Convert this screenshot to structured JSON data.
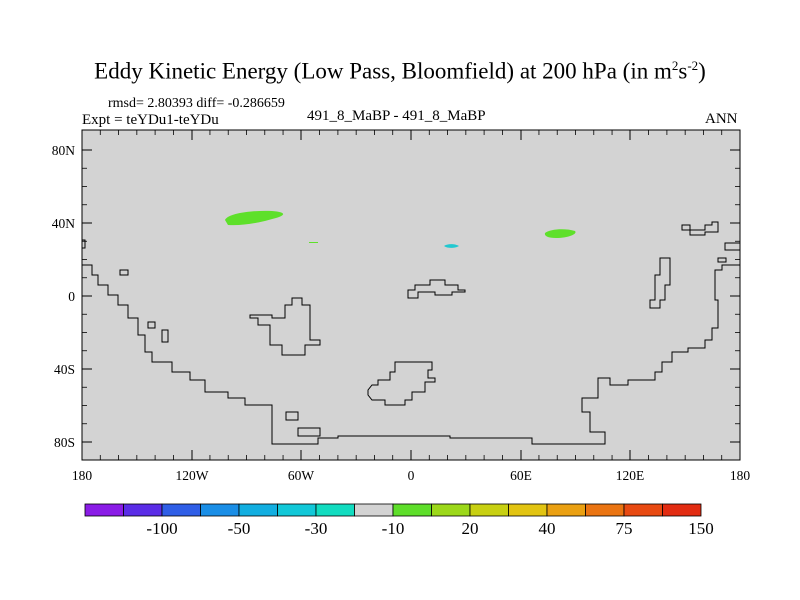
{
  "title": {
    "main": "Eddy Kinetic Energy (Low Pass, Bloomfield) at 200 hPa (in m",
    "sup1": "2",
    "mid": "s",
    "sup2": "-2",
    "close": ")"
  },
  "stats": {
    "text": "rmsd= 2.80393 diff= -0.286659"
  },
  "experiment": {
    "text": "Expt = teYDu1-teYDu"
  },
  "runs": {
    "text": "491_8_MaBP - 491_8_MaBP"
  },
  "season": {
    "text": "ANN"
  },
  "map": {
    "background_color": "#d3d3d3",
    "lat_labels": [
      "80N",
      "40N",
      "0",
      "40S",
      "80S"
    ],
    "lon_labels": [
      "180",
      "120W",
      "60W",
      "0",
      "60E",
      "120E",
      "180"
    ]
  },
  "colorbar": {
    "colors": [
      "#8a1ce6",
      "#5a2ce6",
      "#2f5ee6",
      "#1a8ee6",
      "#12aee0",
      "#12c8d8",
      "#12dcc0",
      "#d3d3d3",
      "#5ede2a",
      "#9cd81a",
      "#c8d012",
      "#e2c412",
      "#eaa012",
      "#ea7412",
      "#e84a12",
      "#e22c12"
    ],
    "labels": [
      "-100",
      "-50",
      "-30",
      "-10",
      "20",
      "40",
      "75",
      "150"
    ]
  },
  "features": {
    "blob_colors": {
      "positive": "#5ee02a",
      "negative": "#22c8d0"
    }
  }
}
